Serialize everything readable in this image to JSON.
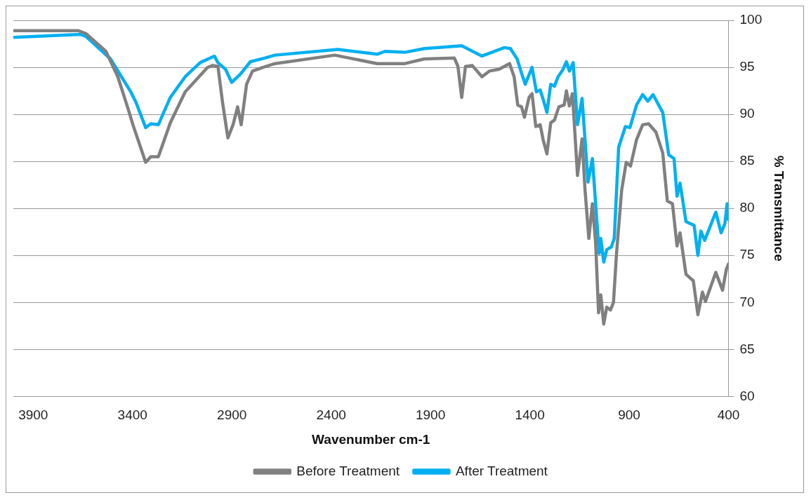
{
  "chart_data": {
    "type": "line",
    "xlabel": "Wavenumber cm-1",
    "ylabel": "% Transmittance",
    "xlim": [
      4000,
      400
    ],
    "xticks": [
      3900,
      3400,
      2900,
      2400,
      1900,
      1400,
      900,
      400
    ],
    "ylim": [
      60,
      100
    ],
    "yticks": [
      60,
      65,
      70,
      75,
      80,
      85,
      90,
      95,
      100
    ],
    "grid": "y",
    "legend": "bottom",
    "marker": "none",
    "line_style": "solid",
    "series": [
      {
        "name": "Before Treatment",
        "color": "#808080",
        "x": [
          3996,
          3673,
          3635,
          3534,
          3474,
          3421,
          3398,
          3334,
          3308,
          3270,
          3210,
          3135,
          3022,
          2996,
          2970,
          2947,
          2920,
          2894,
          2871,
          2853,
          2826,
          2796,
          2744,
          2683,
          2382,
          2168,
          2029,
          1931,
          1780,
          1762,
          1743,
          1724,
          1690,
          1641,
          1604,
          1555,
          1502,
          1479,
          1461,
          1442,
          1427,
          1404,
          1389,
          1370,
          1348,
          1333,
          1314,
          1295,
          1276,
          1254,
          1227,
          1216,
          1201,
          1186,
          1179,
          1160,
          1137,
          1122,
          1103,
          1085,
          1069,
          1054,
          1043,
          1028,
          1013,
          994,
          979,
          964,
          938,
          915,
          893,
          863,
          832,
          802,
          765,
          731,
          708,
          682,
          659,
          644,
          614,
          577,
          554,
          531,
          516,
          464,
          430,
          411,
          400
        ],
        "values": [
          98.9,
          98.9,
          98.6,
          96.7,
          94.0,
          90.5,
          88.9,
          84.9,
          85.5,
          85.5,
          89.1,
          92.4,
          95.0,
          95.2,
          95.1,
          91.3,
          87.5,
          88.9,
          90.8,
          88.9,
          93.2,
          94.6,
          95.0,
          95.4,
          96.3,
          95.4,
          95.4,
          95.9,
          96.0,
          95.1,
          91.8,
          95.1,
          95.2,
          94.0,
          94.6,
          94.8,
          95.4,
          94.0,
          91.0,
          90.8,
          89.7,
          91.8,
          92.2,
          88.7,
          88.9,
          87.3,
          85.8,
          89.1,
          89.4,
          90.8,
          91.0,
          92.5,
          90.9,
          92.2,
          90.0,
          83.5,
          87.4,
          81.9,
          76.8,
          80.5,
          76.4,
          68.9,
          70.8,
          67.7,
          69.5,
          69.2,
          70.0,
          75.1,
          81.9,
          84.9,
          84.5,
          87.3,
          88.9,
          89.0,
          88.1,
          85.9,
          80.8,
          80.5,
          76.0,
          77.4,
          73.0,
          72.3,
          68.7,
          71.1,
          70.1,
          73.2,
          71.3,
          73.5,
          74.1
        ]
      },
      {
        "name": "After Treatment",
        "color": "#00b0f0",
        "x": [
          3996,
          3661,
          3635,
          3511,
          3409,
          3383,
          3334,
          3308,
          3270,
          3210,
          3135,
          3060,
          2988,
          2970,
          2932,
          2901,
          2856,
          2807,
          2732,
          2683,
          2367,
          2168,
          2130,
          2029,
          1931,
          1743,
          1641,
          1528,
          1498,
          1464,
          1442,
          1423,
          1389,
          1367,
          1348,
          1333,
          1314,
          1295,
          1276,
          1258,
          1235,
          1216,
          1201,
          1182,
          1160,
          1137,
          1107,
          1085,
          1051,
          1043,
          1028,
          1013,
          990,
          975,
          953,
          919,
          896,
          863,
          832,
          806,
          780,
          731,
          701,
          674,
          659,
          644,
          614,
          573,
          554,
          539,
          520,
          464,
          437,
          418,
          407,
          400
        ],
        "values": [
          98.2,
          98.5,
          98.3,
          95.9,
          92.4,
          91.3,
          88.6,
          89.0,
          88.9,
          91.8,
          94.0,
          95.5,
          96.2,
          95.5,
          94.8,
          93.4,
          94.3,
          95.6,
          96.0,
          96.3,
          96.9,
          96.4,
          96.7,
          96.6,
          97.0,
          97.3,
          96.2,
          97.1,
          97.0,
          95.9,
          94.4,
          93.2,
          95.0,
          92.4,
          92.6,
          91.6,
          90.2,
          93.2,
          93.0,
          94.0,
          94.7,
          95.6,
          94.6,
          95.5,
          88.9,
          91.7,
          82.8,
          85.3,
          75.2,
          76.8,
          74.3,
          75.6,
          75.9,
          76.8,
          86.5,
          88.7,
          88.6,
          91.0,
          92.1,
          91.4,
          92.1,
          90.2,
          85.7,
          85.3,
          81.3,
          82.7,
          78.6,
          78.2,
          75.0,
          77.6,
          76.6,
          79.6,
          77.4,
          78.4,
          80.5,
          78.8
        ]
      }
    ]
  }
}
